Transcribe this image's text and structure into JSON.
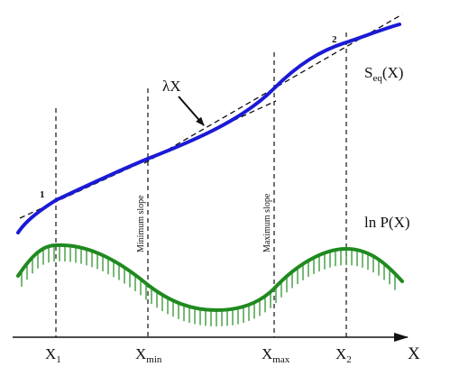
{
  "axis": {
    "x_label": "X",
    "ticks": [
      {
        "base": "X",
        "sub": "1"
      },
      {
        "base": "X",
        "sub": "min"
      },
      {
        "base": "X",
        "sub": "max"
      },
      {
        "base": "X",
        "sub": "2"
      }
    ]
  },
  "curves": {
    "seq": {
      "base": "S",
      "sub": "eq",
      "tail": "(X)",
      "color": "#1a1ad6"
    },
    "lnp": {
      "text": "ln P(X)",
      "color": "#1f8a1f"
    }
  },
  "annotations": {
    "lambda_x": "λX",
    "minimum_slope": "Minimum slope",
    "maximum_slope": "Maximum slope",
    "point_1": "1",
    "point_2": "2"
  }
}
